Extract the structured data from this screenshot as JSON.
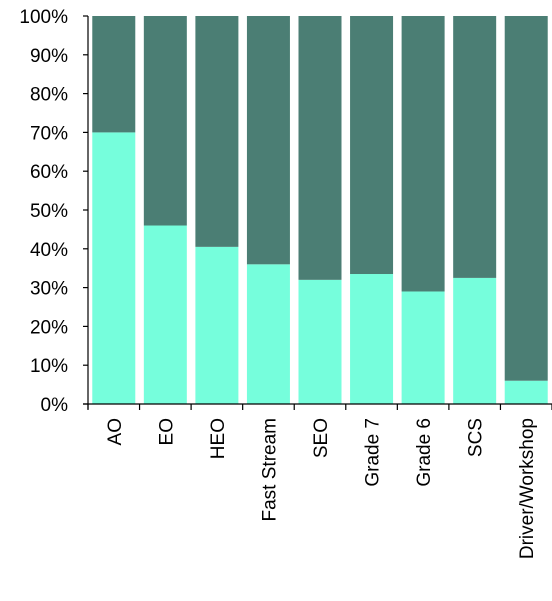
{
  "chart_data": {
    "type": "bar",
    "stacked": true,
    "percent_stacked": true,
    "categories": [
      "AO",
      "EO",
      "HEO",
      "Fast Stream",
      "SEO",
      "Grade 7",
      "Grade 6",
      "SCS",
      "Driver/Workshop"
    ],
    "series": [
      {
        "values": [
          70,
          46,
          40.5,
          36,
          32,
          33.5,
          29,
          32.5,
          6
        ]
      },
      {
        "values": [
          30,
          54,
          59.5,
          64,
          68,
          66.5,
          71,
          67.5,
          94
        ]
      }
    ],
    "colors": [
      "#76FEDC",
      "#4B7E74"
    ],
    "ylim": [
      0,
      100
    ],
    "yticks": [
      "0%",
      "10%",
      "20%",
      "30%",
      "40%",
      "50%",
      "60%",
      "70%",
      "80%",
      "90%",
      "100%"
    ],
    "title": "",
    "xlabel": "",
    "ylabel": "",
    "legend": "none",
    "grid": false
  }
}
